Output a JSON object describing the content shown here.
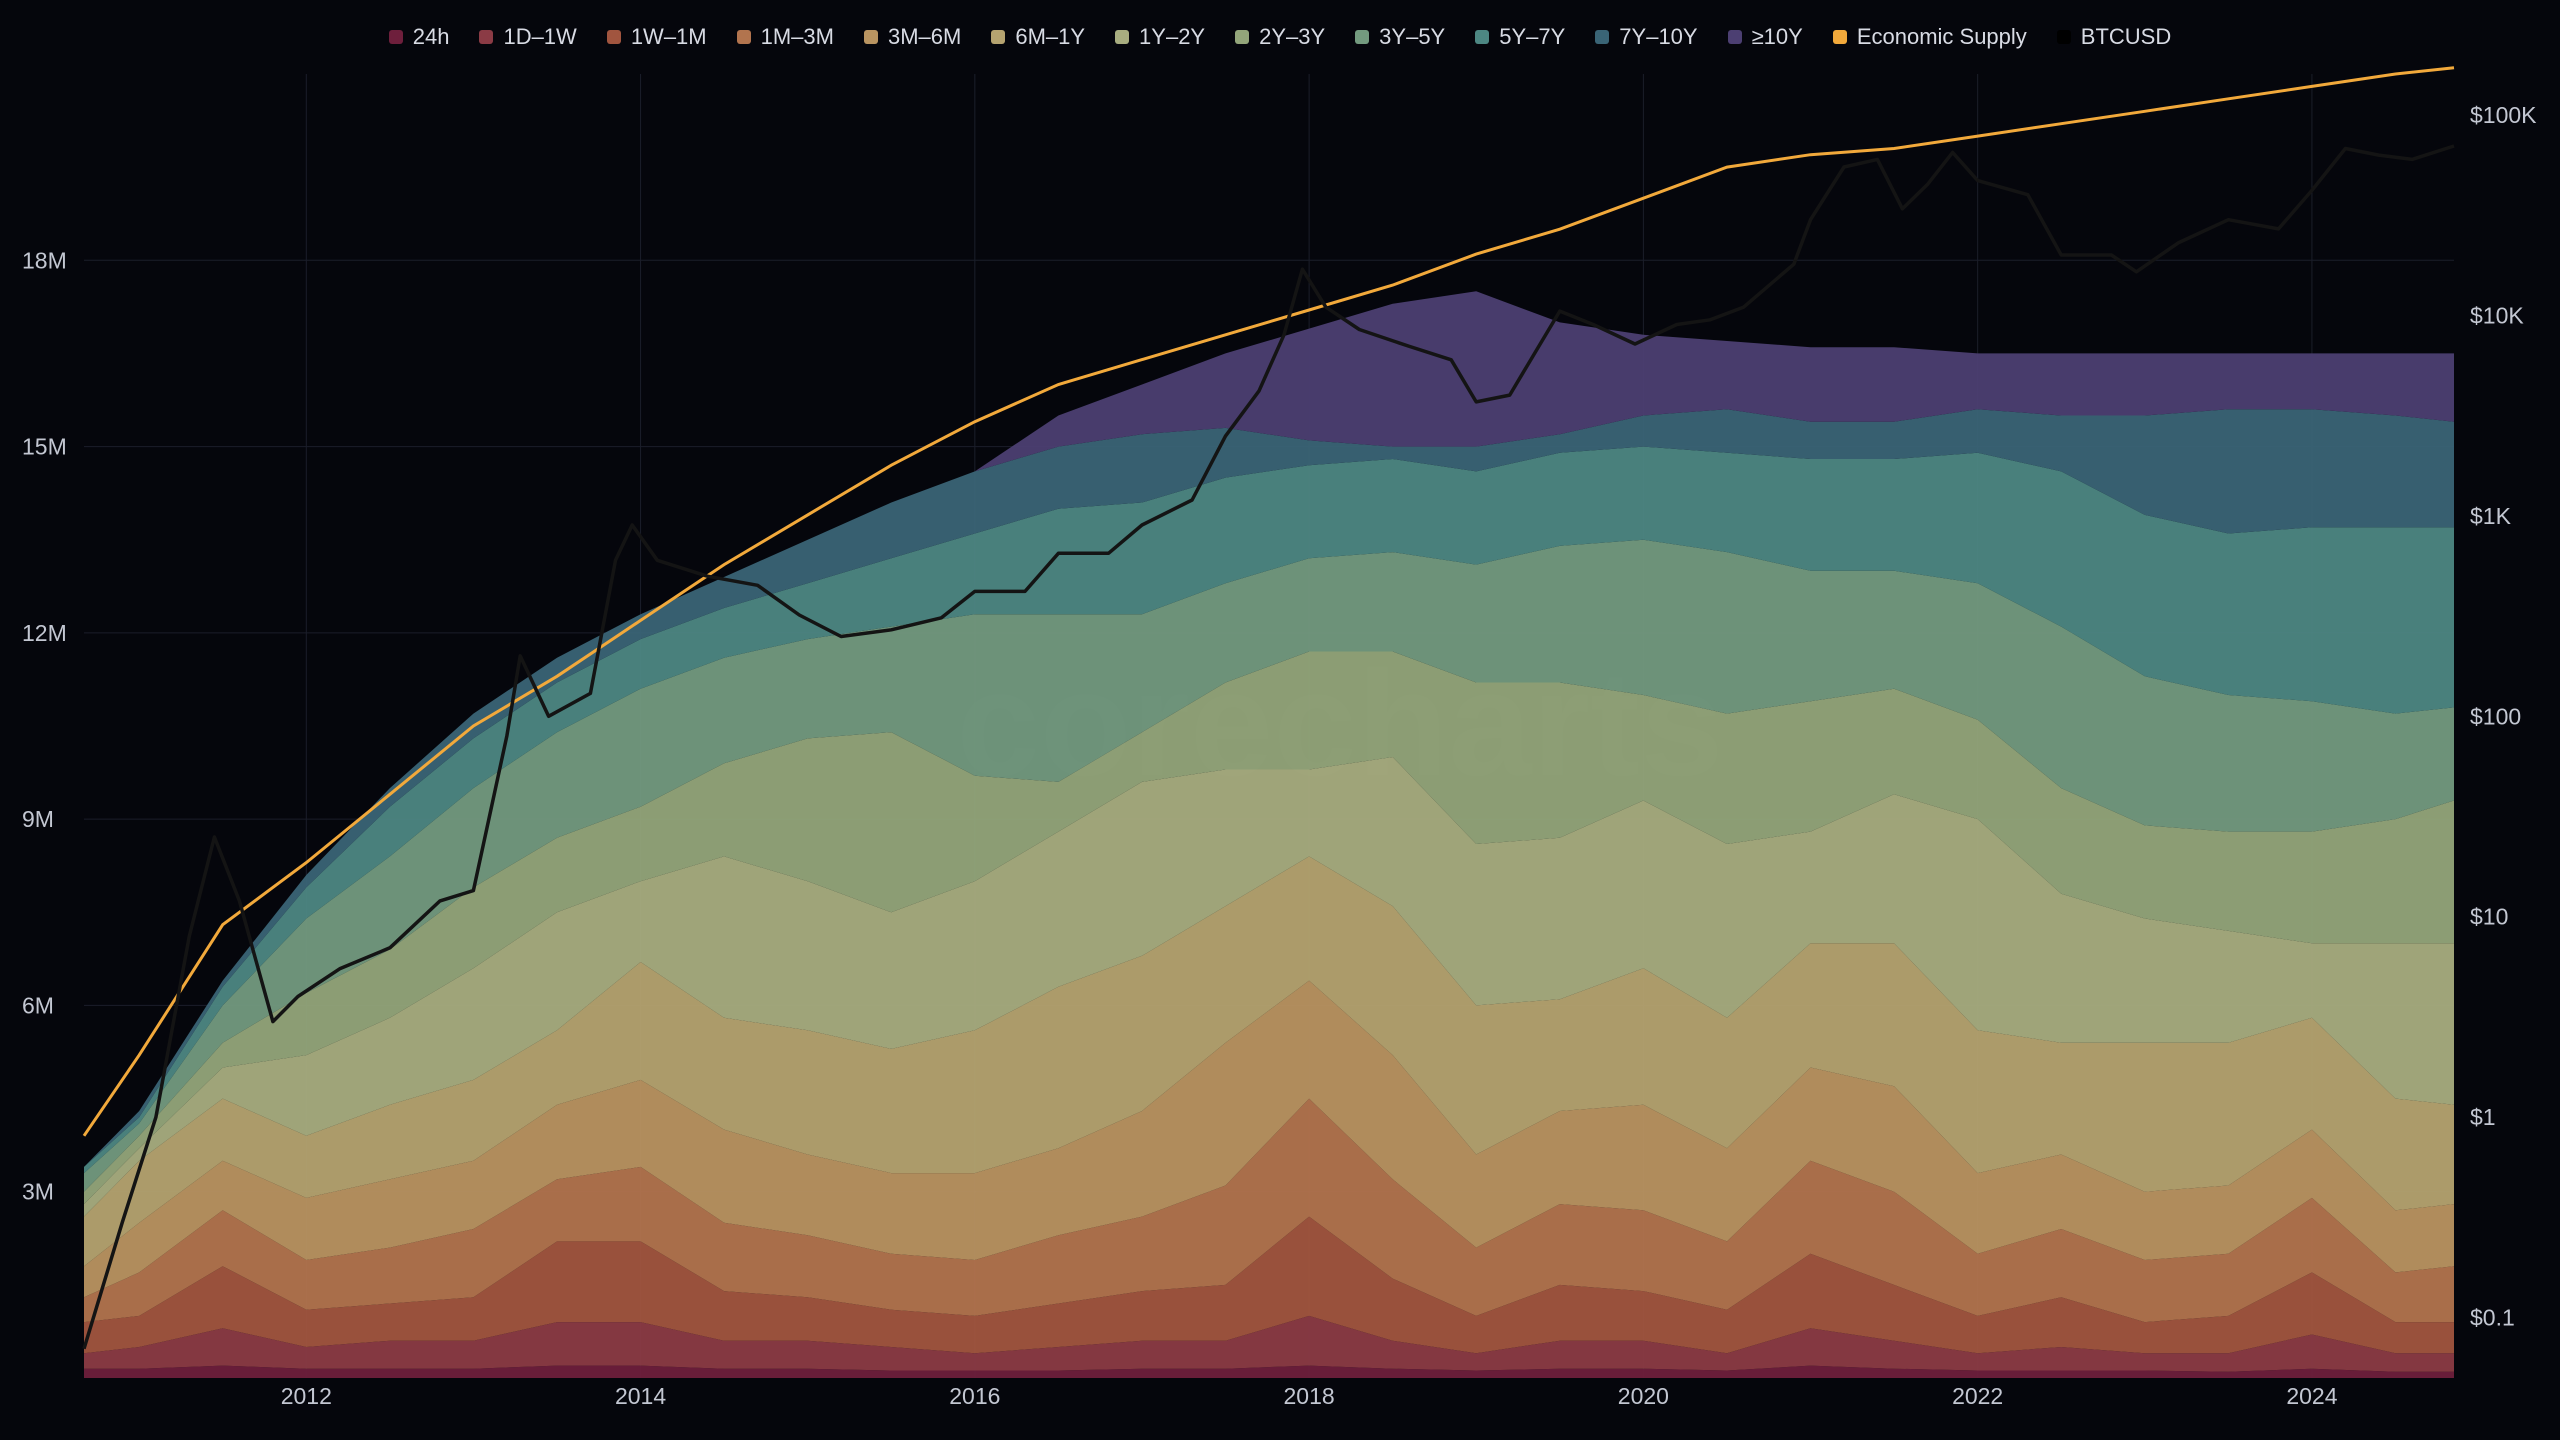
{
  "watermark": "corecharts",
  "chart_data": {
    "type": "area",
    "stacked": true,
    "title": "",
    "xlabel": "",
    "ylabel": "",
    "xlim": [
      2010.67,
      2024.85
    ],
    "ylim_left": [
      0,
      21000000
    ],
    "ylim_right_log": [
      0.05,
      160000
    ],
    "y_left_ticks": [
      {
        "value": 3000000,
        "label": "3M"
      },
      {
        "value": 6000000,
        "label": "6M"
      },
      {
        "value": 9000000,
        "label": "9M"
      },
      {
        "value": 12000000,
        "label": "12M"
      },
      {
        "value": 15000000,
        "label": "15M"
      },
      {
        "value": 18000000,
        "label": "18M"
      }
    ],
    "y_right_ticks": [
      {
        "value": 0.1,
        "label": "$0.1"
      },
      {
        "value": 1,
        "label": "$1"
      },
      {
        "value": 10,
        "label": "$10"
      },
      {
        "value": 100,
        "label": "$100"
      },
      {
        "value": 1000,
        "label": "$1K"
      },
      {
        "value": 10000,
        "label": "$10K"
      },
      {
        "value": 100000,
        "label": "$100K"
      }
    ],
    "x_ticks": [
      {
        "value": 2012,
        "label": "2012"
      },
      {
        "value": 2014,
        "label": "2014"
      },
      {
        "value": 2016,
        "label": "2016"
      },
      {
        "value": 2018,
        "label": "2018"
      },
      {
        "value": 2020,
        "label": "2020"
      },
      {
        "value": 2022,
        "label": "2022"
      },
      {
        "value": 2024,
        "label": "2024"
      }
    ],
    "grid": true,
    "legend_position": "top",
    "legend": [
      {
        "name": "24h",
        "color": "#6e1f3c"
      },
      {
        "name": "1D–1W",
        "color": "#8b3b45"
      },
      {
        "name": "1W–1M",
        "color": "#a1553f"
      },
      {
        "name": "1M–3M",
        "color": "#b2744e"
      },
      {
        "name": "3M–6M",
        "color": "#b99461"
      },
      {
        "name": "6M–1Y",
        "color": "#b5a370"
      },
      {
        "name": "1Y–2Y",
        "color": "#a8ad80"
      },
      {
        "name": "2Y–3Y",
        "color": "#93a57a"
      },
      {
        "name": "3Y–5Y",
        "color": "#739a7f"
      },
      {
        "name": "5Y–7Y",
        "color": "#4d8783"
      },
      {
        "name": "7Y–10Y",
        "color": "#3a6476"
      },
      {
        "name": "≥10Y",
        "color": "#4c3f72"
      },
      {
        "name": "Economic Supply",
        "color": "#f2a93b"
      },
      {
        "name": "BTCUSD",
        "color": "#111111"
      }
    ],
    "x": [
      2010.67,
      2011.0,
      2011.5,
      2012.0,
      2012.5,
      2013.0,
      2013.5,
      2014.0,
      2014.5,
      2015.0,
      2015.5,
      2016.0,
      2016.5,
      2017.0,
      2017.5,
      2018.0,
      2018.5,
      2019.0,
      2019.5,
      2020.0,
      2020.5,
      2021.0,
      2021.5,
      2022.0,
      2022.5,
      2023.0,
      2023.5,
      2024.0,
      2024.5,
      2024.85
    ],
    "band_tops": [
      {
        "name": "24h",
        "values": [
          0.15,
          0.15,
          0.2,
          0.15,
          0.15,
          0.15,
          0.2,
          0.2,
          0.15,
          0.15,
          0.12,
          0.12,
          0.12,
          0.15,
          0.15,
          0.2,
          0.15,
          0.12,
          0.15,
          0.15,
          0.12,
          0.2,
          0.15,
          0.12,
          0.12,
          0.12,
          0.1,
          0.15,
          0.1,
          0.1
        ]
      },
      {
        "name": "1D–1W",
        "values": [
          0.4,
          0.5,
          0.8,
          0.5,
          0.6,
          0.6,
          0.9,
          0.9,
          0.6,
          0.6,
          0.5,
          0.4,
          0.5,
          0.6,
          0.6,
          1.0,
          0.6,
          0.4,
          0.6,
          0.6,
          0.4,
          0.8,
          0.6,
          0.4,
          0.5,
          0.4,
          0.4,
          0.7,
          0.4,
          0.4
        ]
      },
      {
        "name": "1W–1M",
        "values": [
          0.9,
          1.0,
          1.8,
          1.1,
          1.2,
          1.3,
          2.2,
          2.2,
          1.4,
          1.3,
          1.1,
          1.0,
          1.2,
          1.4,
          1.5,
          2.6,
          1.6,
          1.0,
          1.5,
          1.4,
          1.1,
          2.0,
          1.5,
          1.0,
          1.3,
          0.9,
          1.0,
          1.7,
          0.9,
          0.9
        ]
      },
      {
        "name": "1M–3M",
        "values": [
          1.3,
          1.7,
          2.7,
          1.9,
          2.1,
          2.4,
          3.2,
          3.4,
          2.5,
          2.3,
          2.0,
          1.9,
          2.3,
          2.6,
          3.1,
          4.5,
          3.2,
          2.1,
          2.8,
          2.7,
          2.2,
          3.5,
          3.0,
          2.0,
          2.4,
          1.9,
          2.0,
          2.9,
          1.7,
          1.8
        ]
      },
      {
        "name": "3M–6M",
        "values": [
          1.8,
          2.5,
          3.5,
          2.9,
          3.2,
          3.5,
          4.4,
          4.8,
          4.0,
          3.6,
          3.3,
          3.3,
          3.7,
          4.3,
          5.4,
          6.4,
          5.2,
          3.6,
          4.3,
          4.4,
          3.7,
          5.0,
          4.7,
          3.3,
          3.6,
          3.0,
          3.1,
          4.0,
          2.7,
          2.8
        ]
      },
      {
        "name": "6M–1Y",
        "values": [
          2.6,
          3.5,
          4.5,
          3.9,
          4.4,
          4.8,
          5.6,
          6.7,
          5.8,
          5.6,
          5.3,
          5.6,
          6.3,
          6.8,
          7.6,
          8.4,
          7.6,
          6.0,
          6.1,
          6.6,
          5.8,
          7.0,
          7.0,
          5.6,
          5.4,
          5.4,
          5.4,
          5.8,
          4.5,
          4.4
        ]
      },
      {
        "name": "1Y–2Y",
        "values": [
          2.8,
          3.7,
          5.0,
          5.2,
          5.8,
          6.6,
          7.5,
          8.0,
          8.4,
          8.0,
          7.5,
          8.0,
          8.8,
          9.6,
          9.8,
          9.8,
          10.0,
          8.6,
          8.7,
          9.3,
          8.6,
          8.8,
          9.4,
          9.0,
          7.8,
          7.4,
          7.2,
          7.0,
          7.0,
          7.0
        ]
      },
      {
        "name": "2Y–3Y",
        "values": [
          3.0,
          3.9,
          5.4,
          6.2,
          6.9,
          7.9,
          8.7,
          9.2,
          9.9,
          10.3,
          10.4,
          9.7,
          9.6,
          10.4,
          11.2,
          11.7,
          11.7,
          11.2,
          11.2,
          11.0,
          10.7,
          10.9,
          11.1,
          10.6,
          9.5,
          8.9,
          8.8,
          8.8,
          9.0,
          9.3
        ]
      },
      {
        "name": "3Y–5Y",
        "values": [
          3.3,
          4.1,
          6.0,
          7.4,
          8.4,
          9.5,
          10.4,
          11.1,
          11.6,
          11.9,
          12.1,
          12.3,
          12.3,
          12.3,
          12.8,
          13.2,
          13.3,
          13.1,
          13.4,
          13.5,
          13.3,
          13.0,
          13.0,
          12.8,
          12.1,
          11.3,
          11.0,
          10.9,
          10.7,
          10.8
        ]
      },
      {
        "name": "5Y–7Y",
        "values": [
          3.4,
          4.2,
          6.3,
          7.9,
          9.2,
          10.3,
          11.2,
          11.9,
          12.4,
          12.8,
          13.2,
          13.6,
          14.0,
          14.1,
          14.5,
          14.7,
          14.8,
          14.6,
          14.9,
          15.0,
          14.9,
          14.8,
          14.8,
          14.9,
          14.6,
          13.9,
          13.6,
          13.7,
          13.7,
          13.7
        ]
      },
      {
        "name": "7Y–10Y",
        "values": [
          3.4,
          4.3,
          6.4,
          8.1,
          9.5,
          10.7,
          11.6,
          12.3,
          12.9,
          13.5,
          14.1,
          14.6,
          15.0,
          15.2,
          15.3,
          15.1,
          15.0,
          15.0,
          15.2,
          15.5,
          15.6,
          15.4,
          15.4,
          15.6,
          15.5,
          15.5,
          15.6,
          15.6,
          15.5,
          15.4
        ]
      },
      {
        "name": "≥10Y",
        "values": [
          3.4,
          4.3,
          6.4,
          8.1,
          9.5,
          10.7,
          11.6,
          12.3,
          12.9,
          13.5,
          14.1,
          14.6,
          15.5,
          16.0,
          16.5,
          16.9,
          17.3,
          17.5,
          17.0,
          16.8,
          16.7,
          16.6,
          16.6,
          16.5,
          16.5,
          16.5,
          16.5,
          16.5,
          16.5,
          16.5
        ]
      }
    ],
    "economic_supply_millions": [
      3.9,
      5.2,
      7.3,
      8.3,
      9.4,
      10.5,
      11.3,
      12.2,
      13.1,
      13.9,
      14.7,
      15.4,
      16.0,
      16.4,
      16.8,
      17.2,
      17.6,
      18.1,
      18.5,
      19.0,
      19.5,
      19.7,
      19.8,
      20.0,
      20.2,
      20.4,
      20.6,
      20.8,
      21.0,
      21.1
    ],
    "btcusd": {
      "x": [
        2010.67,
        2010.9,
        2011.1,
        2011.3,
        2011.45,
        2011.6,
        2011.8,
        2011.95,
        2012.2,
        2012.5,
        2012.8,
        2013.0,
        2013.2,
        2013.28,
        2013.45,
        2013.7,
        2013.85,
        2013.95,
        2014.1,
        2014.4,
        2014.7,
        2014.95,
        2015.2,
        2015.5,
        2015.8,
        2016.0,
        2016.3,
        2016.5,
        2016.8,
        2017.0,
        2017.3,
        2017.5,
        2017.7,
        2017.85,
        2017.96,
        2018.1,
        2018.3,
        2018.6,
        2018.85,
        2019.0,
        2019.2,
        2019.5,
        2019.7,
        2019.95,
        2020.2,
        2020.4,
        2020.6,
        2020.9,
        2021.0,
        2021.2,
        2021.4,
        2021.55,
        2021.7,
        2021.85,
        2022.0,
        2022.3,
        2022.5,
        2022.8,
        2022.95,
        2023.2,
        2023.5,
        2023.8,
        2024.0,
        2024.2,
        2024.4,
        2024.6,
        2024.85
      ],
      "y": [
        0.07,
        0.3,
        1.0,
        8.0,
        25.0,
        12.0,
        3.0,
        4.0,
        5.5,
        7.0,
        12.0,
        13.5,
        80.0,
        200.0,
        100.0,
        130.0,
        600.0,
        900.0,
        600.0,
        500.0,
        450.0,
        320.0,
        250.0,
        270.0,
        310.0,
        420.0,
        420.0,
        650.0,
        650.0,
        900.0,
        1200.0,
        2500.0,
        4200.0,
        8000.0,
        17000.0,
        11000.0,
        8500.0,
        7000.0,
        6000.0,
        3700.0,
        4000.0,
        10500.0,
        9000.0,
        7200.0,
        9000.0,
        9500.0,
        11000.0,
        18000.0,
        30000.0,
        55000.0,
        60000.0,
        34000.0,
        45000.0,
        65000.0,
        47000.0,
        40000.0,
        20000.0,
        20000.0,
        16500.0,
        23000.0,
        30000.0,
        27000.0,
        42000.0,
        68000.0,
        63000.0,
        60000.0,
        70000.0
      ]
    }
  }
}
